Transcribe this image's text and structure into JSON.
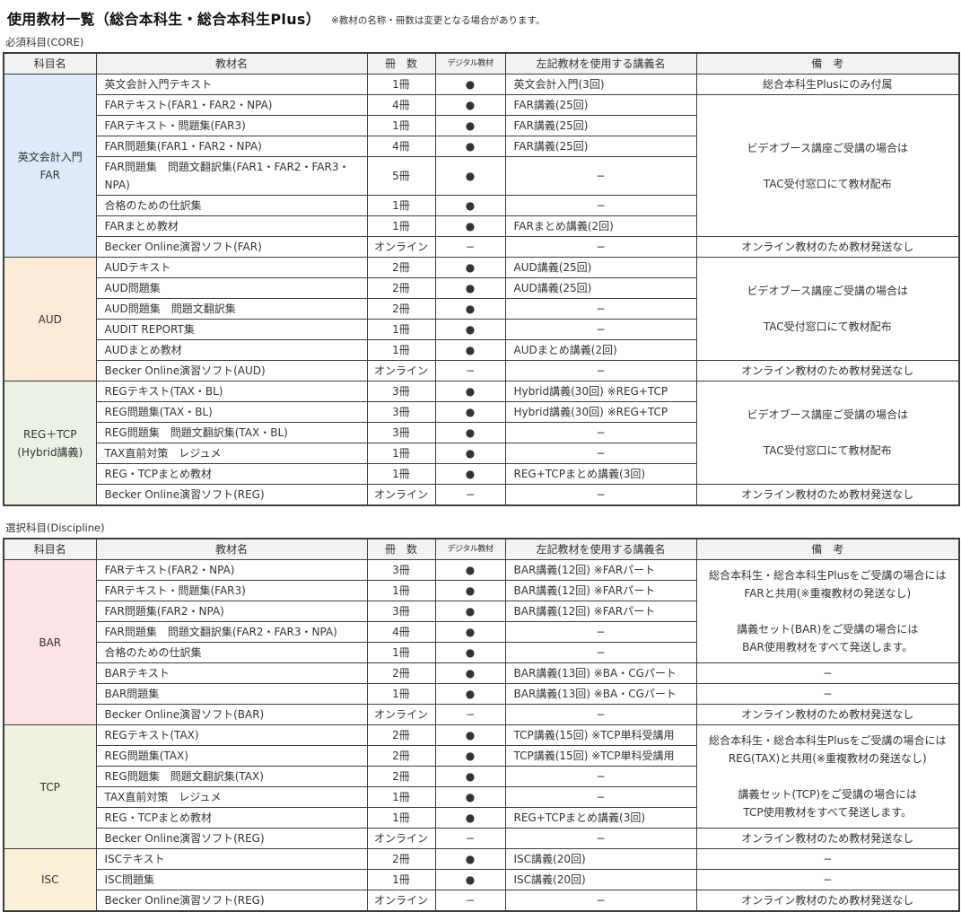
{
  "page": {
    "title": "使用教材一覧（総合本科生・総合本科生Plus）",
    "note": "※教材の名称・冊数は変更となる場合があります。"
  },
  "colors": {
    "header_bg": "#f2f2f2",
    "border": "#3c3c3c",
    "far": "#dceafa",
    "aud": "#fcead9",
    "reg_tcp": "#e9f2e4",
    "bar": "#fbe3e8",
    "tcp": "#eef3de",
    "isc": "#f8f0d7"
  },
  "tables": [
    {
      "label": "必須科目(CORE)",
      "headers": [
        "科目名",
        "教材名",
        "冊　数",
        "デジタル教材",
        "左記教材を使用する講義名",
        "備　考"
      ],
      "rows": [
        [
          {
            "t": "英文会計入門\nFAR",
            "rs": 8,
            "bgKey": "far",
            "n": "subject-far"
          },
          {
            "t": "英文会計入門テキスト",
            "cls": "left",
            "n": "material-name"
          },
          {
            "t": "1冊",
            "n": "count"
          },
          {
            "t": "●",
            "n": "digital-dot"
          },
          {
            "t": "英文会計入門(3回)",
            "cls": "left",
            "n": "lecture-name"
          },
          {
            "t": "総合本科生Plusにのみ付属",
            "n": "remark"
          }
        ],
        [
          {
            "t": "FARテキスト(FAR1・FAR2・NPA)",
            "cls": "left",
            "n": "material-name"
          },
          {
            "t": "4冊",
            "n": "count"
          },
          {
            "t": "●",
            "n": "digital-dot"
          },
          {
            "t": "FAR講義(25回)",
            "cls": "left",
            "n": "lecture-name"
          },
          {
            "t": "ビデオブース講座ご受講の場合は\n\nTAC受付窓口にて教材配布",
            "rs": 6,
            "n": "remark"
          }
        ],
        [
          {
            "t": "FARテキスト・問題集(FAR3)",
            "cls": "left",
            "n": "material-name"
          },
          {
            "t": "1冊",
            "n": "count"
          },
          {
            "t": "●",
            "n": "digital-dot"
          },
          {
            "t": "FAR講義(25回)",
            "cls": "left",
            "n": "lecture-name"
          }
        ],
        [
          {
            "t": "FAR問題集(FAR1・FAR2・NPA)",
            "cls": "left",
            "n": "material-name"
          },
          {
            "t": "4冊",
            "n": "count"
          },
          {
            "t": "●",
            "n": "digital-dot"
          },
          {
            "t": "FAR講義(25回)",
            "cls": "left",
            "n": "lecture-name"
          }
        ],
        [
          {
            "t": "FAR問題集　問題文翻訳集(FAR1・FAR2・FAR3・NPA)",
            "cls": "left",
            "n": "material-name"
          },
          {
            "t": "5冊",
            "n": "count"
          },
          {
            "t": "●",
            "n": "digital-dot"
          },
          {
            "t": "−",
            "n": "lecture-name"
          }
        ],
        [
          {
            "t": "合格のための仕訳集",
            "cls": "left",
            "n": "material-name"
          },
          {
            "t": "1冊",
            "n": "count"
          },
          {
            "t": "●",
            "n": "digital-dot"
          },
          {
            "t": "−",
            "n": "lecture-name"
          }
        ],
        [
          {
            "t": "FARまとめ教材",
            "cls": "left",
            "n": "material-name"
          },
          {
            "t": "1冊",
            "n": "count"
          },
          {
            "t": "●",
            "n": "digital-dot"
          },
          {
            "t": "FARまとめ講義(2回)",
            "cls": "left",
            "n": "lecture-name"
          }
        ],
        [
          {
            "t": "Becker Online演習ソフト(FAR)",
            "cls": "left",
            "n": "material-name"
          },
          {
            "t": "オンライン",
            "n": "count"
          },
          {
            "t": "−",
            "n": "digital-dot"
          },
          {
            "t": "−",
            "n": "lecture-name"
          },
          {
            "t": "オンライン教材のため教材発送なし",
            "n": "remark"
          }
        ],
        [
          {
            "t": "AUD",
            "rs": 6,
            "bgKey": "aud",
            "n": "subject-aud"
          },
          {
            "t": "AUDテキスト",
            "cls": "left",
            "n": "material-name"
          },
          {
            "t": "2冊",
            "n": "count"
          },
          {
            "t": "●",
            "n": "digital-dot"
          },
          {
            "t": "AUD講義(25回)",
            "cls": "left",
            "n": "lecture-name"
          },
          {
            "t": "ビデオブース講座ご受講の場合は\n\nTAC受付窓口にて教材配布",
            "rs": 5,
            "n": "remark"
          }
        ],
        [
          {
            "t": "AUD問題集",
            "cls": "left",
            "n": "material-name"
          },
          {
            "t": "2冊",
            "n": "count"
          },
          {
            "t": "●",
            "n": "digital-dot"
          },
          {
            "t": "AUD講義(25回)",
            "cls": "left",
            "n": "lecture-name"
          }
        ],
        [
          {
            "t": "AUD問題集　問題文翻訳集",
            "cls": "left",
            "n": "material-name"
          },
          {
            "t": "2冊",
            "n": "count"
          },
          {
            "t": "●",
            "n": "digital-dot"
          },
          {
            "t": "−",
            "n": "lecture-name"
          }
        ],
        [
          {
            "t": "AUDIT REPORT集",
            "cls": "left",
            "n": "material-name"
          },
          {
            "t": "1冊",
            "n": "count"
          },
          {
            "t": "●",
            "n": "digital-dot"
          },
          {
            "t": "−",
            "n": "lecture-name"
          }
        ],
        [
          {
            "t": "AUDまとめ教材",
            "cls": "left",
            "n": "material-name"
          },
          {
            "t": "1冊",
            "n": "count"
          },
          {
            "t": "●",
            "n": "digital-dot"
          },
          {
            "t": "AUDまとめ講義(2回)",
            "cls": "left",
            "n": "lecture-name"
          }
        ],
        [
          {
            "t": "Becker Online演習ソフト(AUD)",
            "cls": "left",
            "n": "material-name"
          },
          {
            "t": "オンライン",
            "n": "count"
          },
          {
            "t": "−",
            "n": "digital-dot"
          },
          {
            "t": "−",
            "n": "lecture-name"
          },
          {
            "t": "オンライン教材のため教材発送なし",
            "n": "remark"
          }
        ],
        [
          {
            "t": "REG＋TCP\n(Hybrid講義)",
            "rs": 6,
            "bgKey": "reg_tcp",
            "n": "subject-reg-tcp"
          },
          {
            "t": "REGテキスト(TAX・BL)",
            "cls": "left",
            "n": "material-name"
          },
          {
            "t": "3冊",
            "n": "count"
          },
          {
            "t": "●",
            "n": "digital-dot"
          },
          {
            "t": "Hybrid講義(30回) ※REG+TCP",
            "cls": "left",
            "n": "lecture-name"
          },
          {
            "t": "ビデオブース講座ご受講の場合は\n\nTAC受付窓口にて教材配布",
            "rs": 5,
            "n": "remark"
          }
        ],
        [
          {
            "t": "REG問題集(TAX・BL)",
            "cls": "left",
            "n": "material-name"
          },
          {
            "t": "3冊",
            "n": "count"
          },
          {
            "t": "●",
            "n": "digital-dot"
          },
          {
            "t": "Hybrid講義(30回) ※REG+TCP",
            "cls": "left",
            "n": "lecture-name"
          }
        ],
        [
          {
            "t": "REG問題集　問題文翻訳集(TAX・BL)",
            "cls": "left",
            "n": "material-name"
          },
          {
            "t": "3冊",
            "n": "count"
          },
          {
            "t": "●",
            "n": "digital-dot"
          },
          {
            "t": "−",
            "n": "lecture-name"
          }
        ],
        [
          {
            "t": "TAX直前対策　レジュメ",
            "cls": "left",
            "n": "material-name"
          },
          {
            "t": "1冊",
            "n": "count"
          },
          {
            "t": "●",
            "n": "digital-dot"
          },
          {
            "t": "−",
            "n": "lecture-name"
          }
        ],
        [
          {
            "t": "REG・TCPまとめ教材",
            "cls": "left",
            "n": "material-name"
          },
          {
            "t": "1冊",
            "n": "count"
          },
          {
            "t": "●",
            "n": "digital-dot"
          },
          {
            "t": "REG+TCPまとめ講義(3回)",
            "cls": "left",
            "n": "lecture-name"
          }
        ],
        [
          {
            "t": "Becker Online演習ソフト(REG)",
            "cls": "left",
            "n": "material-name"
          },
          {
            "t": "オンライン",
            "n": "count"
          },
          {
            "t": "−",
            "n": "digital-dot"
          },
          {
            "t": "−",
            "n": "lecture-name"
          },
          {
            "t": "オンライン教材のため教材発送なし",
            "n": "remark"
          }
        ]
      ]
    },
    {
      "label": "選択科目(Discipline)",
      "headers": [
        "科目名",
        "教材名",
        "冊　数",
        "デジタル教材",
        "左記教材を使用する講義名",
        "備　考"
      ],
      "rows": [
        [
          {
            "t": "BAR",
            "rs": 8,
            "bgKey": "bar",
            "n": "subject-bar"
          },
          {
            "t": "FARテキスト(FAR2・NPA)",
            "cls": "left",
            "n": "material-name"
          },
          {
            "t": "3冊",
            "n": "count"
          },
          {
            "t": "●",
            "n": "digital-dot"
          },
          {
            "t": "BAR講義(12回) ※FARパート",
            "cls": "left",
            "n": "lecture-name"
          },
          {
            "t": "総合本科生・総合本科生Plusをご受講の場合には\nFARと共用(※重複教材の発送なし)\n\n講義セット(BAR)をご受講の場合には\nBAR使用教材をすべて発送します。",
            "rs": 5,
            "n": "remark"
          }
        ],
        [
          {
            "t": "FARテキスト・問題集(FAR3)",
            "cls": "left",
            "n": "material-name"
          },
          {
            "t": "1冊",
            "n": "count"
          },
          {
            "t": "●",
            "n": "digital-dot"
          },
          {
            "t": "BAR講義(12回) ※FARパート",
            "cls": "left",
            "n": "lecture-name"
          }
        ],
        [
          {
            "t": "FAR問題集(FAR2・NPA)",
            "cls": "left",
            "n": "material-name"
          },
          {
            "t": "3冊",
            "n": "count"
          },
          {
            "t": "●",
            "n": "digital-dot"
          },
          {
            "t": "BAR講義(12回) ※FARパート",
            "cls": "left",
            "n": "lecture-name"
          }
        ],
        [
          {
            "t": "FAR問題集　問題文翻訳集(FAR2・FAR3・NPA)",
            "cls": "left",
            "n": "material-name"
          },
          {
            "t": "4冊",
            "n": "count"
          },
          {
            "t": "●",
            "n": "digital-dot"
          },
          {
            "t": "−",
            "n": "lecture-name"
          }
        ],
        [
          {
            "t": "合格のための仕訳集",
            "cls": "left",
            "n": "material-name"
          },
          {
            "t": "1冊",
            "n": "count"
          },
          {
            "t": "●",
            "n": "digital-dot"
          },
          {
            "t": "−",
            "n": "lecture-name"
          }
        ],
        [
          {
            "t": "BARテキスト",
            "cls": "left",
            "n": "material-name"
          },
          {
            "t": "2冊",
            "n": "count"
          },
          {
            "t": "●",
            "n": "digital-dot"
          },
          {
            "t": "BAR講義(13回) ※BA・CGパート",
            "cls": "left",
            "n": "lecture-name"
          },
          {
            "t": "−",
            "n": "remark"
          }
        ],
        [
          {
            "t": "BAR問題集",
            "cls": "left",
            "n": "material-name"
          },
          {
            "t": "1冊",
            "n": "count"
          },
          {
            "t": "●",
            "n": "digital-dot"
          },
          {
            "t": "BAR講義(13回) ※BA・CGパート",
            "cls": "left",
            "n": "lecture-name"
          },
          {
            "t": "−",
            "n": "remark"
          }
        ],
        [
          {
            "t": "Becker Online演習ソフト(BAR)",
            "cls": "left",
            "n": "material-name"
          },
          {
            "t": "オンライン",
            "n": "count"
          },
          {
            "t": "−",
            "n": "digital-dot"
          },
          {
            "t": "−",
            "n": "lecture-name"
          },
          {
            "t": "オンライン教材のため教材発送なし",
            "n": "remark"
          }
        ],
        [
          {
            "t": "TCP",
            "rs": 6,
            "bgKey": "tcp",
            "n": "subject-tcp"
          },
          {
            "t": "REGテキスト(TAX)",
            "cls": "left",
            "n": "material-name"
          },
          {
            "t": "2冊",
            "n": "count"
          },
          {
            "t": "●",
            "n": "digital-dot"
          },
          {
            "t": "TCP講義(15回) ※TCP単科受講用",
            "cls": "left",
            "n": "lecture-name"
          },
          {
            "t": "総合本科生・総合本科生Plusをご受講の場合には\nREG(TAX)と共用(※重複教材の発送なし)\n\n講義セット(TCP)をご受講の場合には\nTCP使用教材をすべて発送します。",
            "rs": 5,
            "n": "remark"
          }
        ],
        [
          {
            "t": "REG問題集(TAX)",
            "cls": "left",
            "n": "material-name"
          },
          {
            "t": "2冊",
            "n": "count"
          },
          {
            "t": "●",
            "n": "digital-dot"
          },
          {
            "t": "TCP講義(15回) ※TCP単科受講用",
            "cls": "left",
            "n": "lecture-name"
          }
        ],
        [
          {
            "t": "REG問題集　問題文翻訳集(TAX)",
            "cls": "left",
            "n": "material-name"
          },
          {
            "t": "2冊",
            "n": "count"
          },
          {
            "t": "●",
            "n": "digital-dot"
          },
          {
            "t": "−",
            "n": "lecture-name"
          }
        ],
        [
          {
            "t": "TAX直前対策　レジュメ",
            "cls": "left",
            "n": "material-name"
          },
          {
            "t": "1冊",
            "n": "count"
          },
          {
            "t": "●",
            "n": "digital-dot"
          },
          {
            "t": "−",
            "n": "lecture-name"
          }
        ],
        [
          {
            "t": "REG・TCPまとめ教材",
            "cls": "left",
            "n": "material-name"
          },
          {
            "t": "1冊",
            "n": "count"
          },
          {
            "t": "●",
            "n": "digital-dot"
          },
          {
            "t": "REG+TCPまとめ講義(3回)",
            "cls": "left",
            "n": "lecture-name"
          }
        ],
        [
          {
            "t": "Becker Online演習ソフト(REG)",
            "cls": "left",
            "n": "material-name"
          },
          {
            "t": "オンライン",
            "n": "count"
          },
          {
            "t": "−",
            "n": "digital-dot"
          },
          {
            "t": "−",
            "n": "lecture-name"
          },
          {
            "t": "オンライン教材のため教材発送なし",
            "n": "remark"
          }
        ],
        [
          {
            "t": "ISC",
            "rs": 3,
            "bgKey": "isc",
            "n": "subject-isc"
          },
          {
            "t": "ISCテキスト",
            "cls": "left",
            "n": "material-name"
          },
          {
            "t": "2冊",
            "n": "count"
          },
          {
            "t": "●",
            "n": "digital-dot"
          },
          {
            "t": "ISC講義(20回)",
            "cls": "left",
            "n": "lecture-name"
          },
          {
            "t": "−",
            "n": "remark"
          }
        ],
        [
          {
            "t": "ISC問題集",
            "cls": "left",
            "n": "material-name"
          },
          {
            "t": "1冊",
            "n": "count"
          },
          {
            "t": "●",
            "n": "digital-dot"
          },
          {
            "t": "ISC講義(20回)",
            "cls": "left",
            "n": "lecture-name"
          },
          {
            "t": "−",
            "n": "remark"
          }
        ],
        [
          {
            "t": "Becker Online演習ソフト(REG)",
            "cls": "left",
            "n": "material-name"
          },
          {
            "t": "オンライン",
            "n": "count"
          },
          {
            "t": "−",
            "n": "digital-dot"
          },
          {
            "t": "−",
            "n": "lecture-name"
          },
          {
            "t": "オンライン教材のため教材発送なし",
            "n": "remark"
          }
        ]
      ]
    }
  ]
}
